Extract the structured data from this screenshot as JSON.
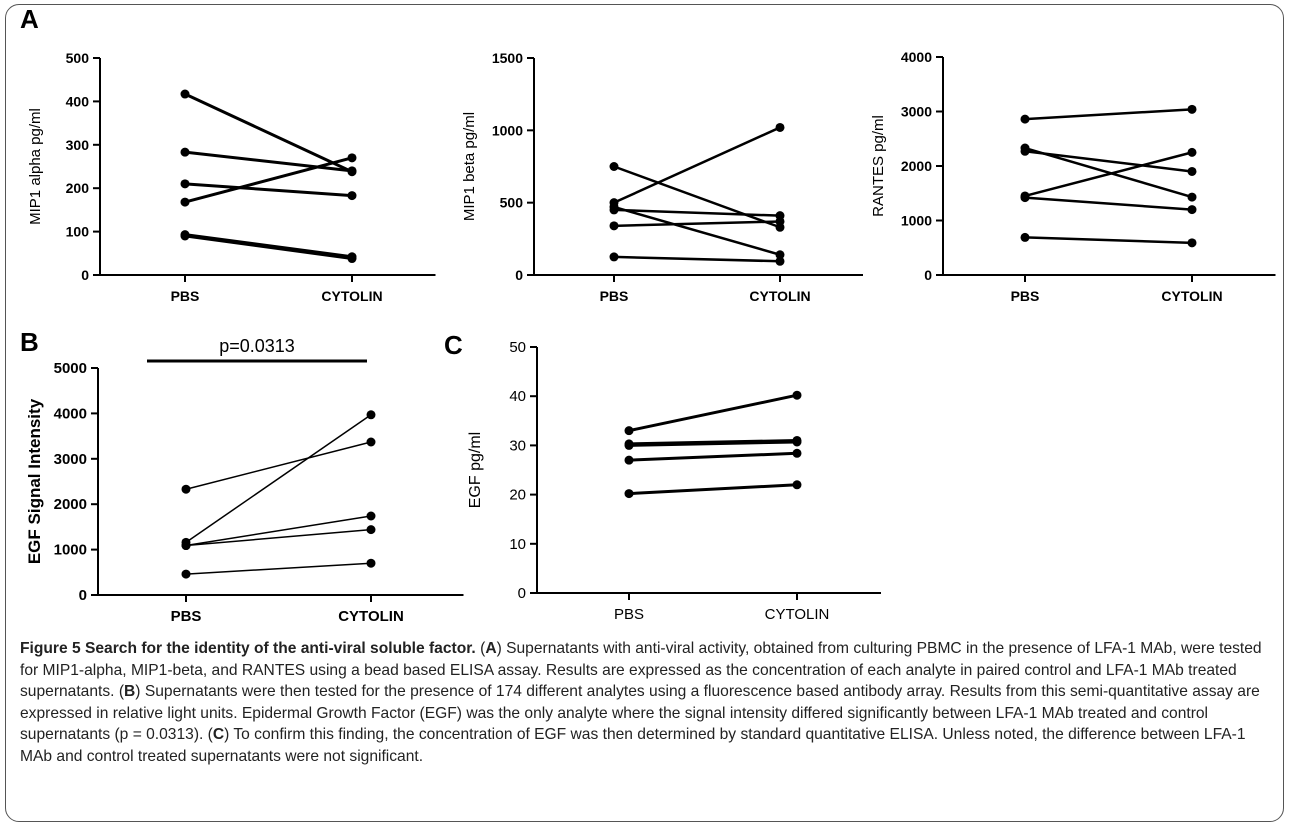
{
  "panel_letters": {
    "a": "A",
    "b": "B",
    "c": "C"
  },
  "caption": {
    "title": "Figure 5 Search for the identity of the anti-viral soluble factor.",
    "seg1_pre": " (",
    "seg1_letter": "A",
    "seg1_text": ") Supernatants with anti-viral activity, obtained from culturing PBMC in the presence of LFA-1 MAb, were tested for MIP1-alpha, MIP1-beta, and RANTES using a bead based ELISA assay. Results are expressed as the concentration of each analyte in paired control and LFA-1 MAb treated supernatants. (",
    "seg2_letter": "B",
    "seg2_text": ") Supernatants were then tested for the presence of 174 different analytes using a fluorescence based antibody array. Results from this semi-quantitative assay are expressed in relative light units. Epidermal Growth Factor (EGF) was the only analyte where the signal intensity differed significantly between LFA-1 MAb treated and control supernatants (p = 0.0313). (",
    "seg3_letter": "C",
    "seg3_text": ") To confirm this finding, the concentration of EGF was then determined by standard quantitative ELISA. Unless noted, the difference between LFA-1 MAb and control treated supernatants were not significant."
  },
  "chart_data": [
    {
      "id": "A1",
      "type": "line",
      "categories": [
        "PBS",
        "CYTOLIN"
      ],
      "ylabel": "MIP1 alpha pg/ml",
      "ylim": [
        0,
        500
      ],
      "yticks": [
        0,
        100,
        200,
        300,
        400,
        500
      ],
      "series": [
        {
          "values": [
            417,
            238
          ]
        },
        {
          "values": [
            283,
            240
          ]
        },
        {
          "values": [
            210,
            183
          ]
        },
        {
          "values": [
            168,
            270
          ]
        },
        {
          "values": [
            93,
            42
          ]
        },
        {
          "values": [
            90,
            38
          ]
        }
      ]
    },
    {
      "id": "A2",
      "type": "line",
      "categories": [
        "PBS",
        "CYTOLIN"
      ],
      "ylabel": "MIP1 beta pg/ml",
      "ylim": [
        0,
        1500
      ],
      "yticks": [
        0,
        500,
        1000,
        1500
      ],
      "series": [
        {
          "values": [
            750,
            330
          ]
        },
        {
          "values": [
            500,
            1020
          ]
        },
        {
          "values": [
            470,
            140
          ]
        },
        {
          "values": [
            450,
            410
          ]
        },
        {
          "values": [
            340,
            370
          ]
        },
        {
          "values": [
            125,
            95
          ]
        }
      ]
    },
    {
      "id": "A3",
      "type": "line",
      "categories": [
        "PBS",
        "CYTOLIN"
      ],
      "ylabel": "RANTES pg/ml",
      "ylim": [
        0,
        4000
      ],
      "yticks": [
        0,
        1000,
        2000,
        3000,
        4000
      ],
      "series": [
        {
          "values": [
            2860,
            3040
          ]
        },
        {
          "values": [
            2330,
            1430
          ]
        },
        {
          "values": [
            2270,
            1900
          ]
        },
        {
          "values": [
            1450,
            2250
          ]
        },
        {
          "values": [
            1420,
            1200
          ]
        },
        {
          "values": [
            690,
            590
          ]
        }
      ]
    },
    {
      "id": "B",
      "type": "line",
      "categories": [
        "PBS",
        "CYTOLIN"
      ],
      "ylabel": "EGF Signal Intensity",
      "ylim": [
        0,
        5000
      ],
      "yticks": [
        0,
        1000,
        2000,
        3000,
        4000,
        5000
      ],
      "annotation": "p=0.0313",
      "series": [
        {
          "values": [
            2330,
            3370
          ]
        },
        {
          "values": [
            1160,
            3970
          ]
        },
        {
          "values": [
            1090,
            1740
          ]
        },
        {
          "values": [
            1090,
            1440
          ]
        },
        {
          "values": [
            460,
            700
          ]
        }
      ]
    },
    {
      "id": "C",
      "type": "line",
      "categories": [
        "PBS",
        "CYTOLIN"
      ],
      "ylabel": "EGF pg/ml",
      "ylim": [
        0,
        50
      ],
      "yticks": [
        0,
        10,
        20,
        30,
        40,
        50
      ],
      "series": [
        {
          "values": [
            33,
            40.2
          ]
        },
        {
          "values": [
            30.3,
            31
          ]
        },
        {
          "values": [
            30,
            30.7
          ]
        },
        {
          "values": [
            27,
            28.4
          ]
        },
        {
          "values": [
            20.2,
            22
          ]
        }
      ]
    }
  ]
}
